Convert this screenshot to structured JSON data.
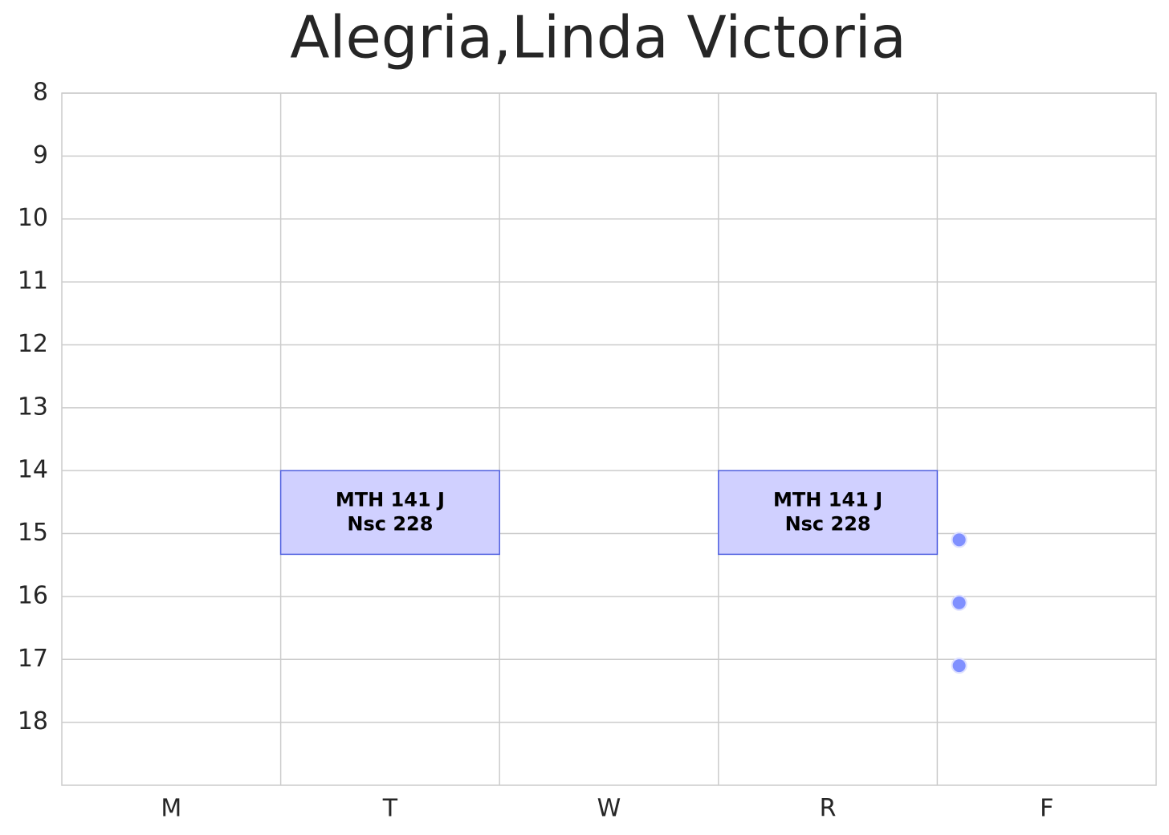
{
  "chart_data": {
    "type": "schedule",
    "title": "Alegria,Linda Victoria",
    "categories": [
      "M",
      "T",
      "W",
      "R",
      "F"
    ],
    "xlim": [
      0,
      5
    ],
    "ylim": [
      19,
      8
    ],
    "yticks": [
      8,
      9,
      10,
      11,
      12,
      13,
      14,
      15,
      16,
      17,
      18
    ],
    "grid": true,
    "events": [
      {
        "x": [
          1,
          2
        ],
        "start": 14,
        "end": 15.33,
        "label": [
          "MTH 141 J",
          "Nsc 228"
        ],
        "color": "#d0d0ff",
        "edge": "#5060e0"
      },
      {
        "x": [
          3,
          4
        ],
        "start": 14,
        "end": 15.33,
        "label": [
          "MTH 141 J",
          "Nsc 228"
        ],
        "color": "#d0d0ff",
        "edge": "#5060e0"
      }
    ],
    "points": {
      "x": [
        4.1,
        4.1,
        4.1
      ],
      "y": [
        15.1,
        16.1,
        17.1
      ],
      "color": "#8090ff"
    }
  }
}
